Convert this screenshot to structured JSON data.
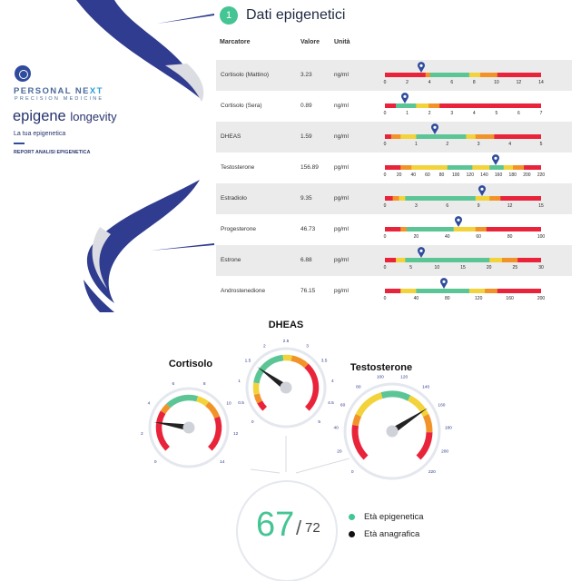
{
  "brand": {
    "name_main": "PERSONAL NE",
    "name_accent": "XT",
    "subtitle": "PRECISION MEDICINE",
    "product": "epigene",
    "product_suffix": "longevity",
    "tagline": "La tua epigenetica",
    "report_label": "REPORT ANALISI EPIGENETICA"
  },
  "section": {
    "number": "1",
    "title": "Dati epigenetici"
  },
  "table": {
    "headers": {
      "marker": "Marcatore",
      "value": "Valore",
      "unit": "Unità"
    },
    "rows": [
      {
        "name": "Cortisolo (Mattino)",
        "value": "3.23",
        "unit": "ng/ml",
        "ticks": [
          "0",
          "2",
          "4",
          "6",
          "8",
          "10",
          "12",
          "14"
        ],
        "marker_fraction": 0.23,
        "segments": [
          {
            "color": "#e8233a",
            "from": 0,
            "to": 0.26
          },
          {
            "color": "#f2932a",
            "from": 0.26,
            "to": 0.29
          },
          {
            "color": "#5cc596",
            "from": 0.29,
            "to": 0.54
          },
          {
            "color": "#f3d33b",
            "from": 0.54,
            "to": 0.61
          },
          {
            "color": "#f2932a",
            "from": 0.61,
            "to": 0.72
          },
          {
            "color": "#e8233a",
            "from": 0.72,
            "to": 1
          }
        ]
      },
      {
        "name": "Cortisolo (Sera)",
        "value": "0.89",
        "unit": "ng/ml",
        "ticks": [
          "0",
          "1",
          "2",
          "3",
          "4",
          "5",
          "6",
          "7"
        ],
        "marker_fraction": 0.13,
        "segments": [
          {
            "color": "#e8233a",
            "from": 0,
            "to": 0.07
          },
          {
            "color": "#5cc596",
            "from": 0.07,
            "to": 0.2
          },
          {
            "color": "#f3d33b",
            "from": 0.2,
            "to": 0.28
          },
          {
            "color": "#f2932a",
            "from": 0.28,
            "to": 0.35
          },
          {
            "color": "#e8233a",
            "from": 0.35,
            "to": 1
          }
        ]
      },
      {
        "name": "DHEAS",
        "value": "1.59",
        "unit": "ng/ml",
        "ticks": [
          "0",
          "1",
          "2",
          "3",
          "4",
          "5"
        ],
        "marker_fraction": 0.32,
        "segments": [
          {
            "color": "#e8233a",
            "from": 0,
            "to": 0.04
          },
          {
            "color": "#f2932a",
            "from": 0.04,
            "to": 0.1
          },
          {
            "color": "#f3d33b",
            "from": 0.1,
            "to": 0.2
          },
          {
            "color": "#5cc596",
            "from": 0.2,
            "to": 0.52
          },
          {
            "color": "#f3d33b",
            "from": 0.52,
            "to": 0.58
          },
          {
            "color": "#f2932a",
            "from": 0.58,
            "to": 0.7
          },
          {
            "color": "#e8233a",
            "from": 0.7,
            "to": 1
          }
        ]
      },
      {
        "name": "Testosterone",
        "value": "156.89",
        "unit": "pg/ml",
        "ticks": [
          "0",
          "20",
          "40",
          "60",
          "80",
          "100",
          "120",
          "140",
          "160",
          "180",
          "200",
          "220"
        ],
        "marker_fraction": 0.71,
        "segments": [
          {
            "color": "#e8233a",
            "from": 0,
            "to": 0.1
          },
          {
            "color": "#f2932a",
            "from": 0.1,
            "to": 0.17
          },
          {
            "color": "#f3d33b",
            "from": 0.17,
            "to": 0.4
          },
          {
            "color": "#5cc596",
            "from": 0.4,
            "to": 0.56
          },
          {
            "color": "#f3d33b",
            "from": 0.56,
            "to": 0.67
          },
          {
            "color": "#5cc596",
            "from": 0.67,
            "to": 0.76
          },
          {
            "color": "#f3d33b",
            "from": 0.76,
            "to": 0.82
          },
          {
            "color": "#f2932a",
            "from": 0.82,
            "to": 0.89
          },
          {
            "color": "#e8233a",
            "from": 0.89,
            "to": 1
          }
        ]
      },
      {
        "name": "Estradiolo",
        "value": "9.35",
        "unit": "pg/ml",
        "ticks": [
          "0",
          "3",
          "6",
          "9",
          "12",
          "15"
        ],
        "marker_fraction": 0.62,
        "segments": [
          {
            "color": "#e8233a",
            "from": 0,
            "to": 0.05
          },
          {
            "color": "#f2932a",
            "from": 0.05,
            "to": 0.09
          },
          {
            "color": "#f3d33b",
            "from": 0.09,
            "to": 0.13
          },
          {
            "color": "#5cc596",
            "from": 0.13,
            "to": 0.58
          },
          {
            "color": "#f3d33b",
            "from": 0.58,
            "to": 0.67
          },
          {
            "color": "#f2932a",
            "from": 0.67,
            "to": 0.74
          },
          {
            "color": "#e8233a",
            "from": 0.74,
            "to": 1
          }
        ]
      },
      {
        "name": "Progesterone",
        "value": "46.73",
        "unit": "pg/ml",
        "ticks": [
          "0",
          "20",
          "40",
          "60",
          "80",
          "100"
        ],
        "marker_fraction": 0.47,
        "segments": [
          {
            "color": "#e8233a",
            "from": 0,
            "to": 0.1
          },
          {
            "color": "#f2932a",
            "from": 0.1,
            "to": 0.14
          },
          {
            "color": "#5cc596",
            "from": 0.14,
            "to": 0.44
          },
          {
            "color": "#f3d33b",
            "from": 0.44,
            "to": 0.58
          },
          {
            "color": "#f2932a",
            "from": 0.58,
            "to": 0.65
          },
          {
            "color": "#e8233a",
            "from": 0.65,
            "to": 1
          }
        ]
      },
      {
        "name": "Estrone",
        "value": "6.88",
        "unit": "pg/ml",
        "ticks": [
          "0",
          "5",
          "10",
          "15",
          "20",
          "25",
          "30"
        ],
        "marker_fraction": 0.23,
        "segments": [
          {
            "color": "#e8233a",
            "from": 0,
            "to": 0.07
          },
          {
            "color": "#f3d33b",
            "from": 0.07,
            "to": 0.13
          },
          {
            "color": "#5cc596",
            "from": 0.13,
            "to": 0.67
          },
          {
            "color": "#f3d33b",
            "from": 0.67,
            "to": 0.75
          },
          {
            "color": "#f2932a",
            "from": 0.75,
            "to": 0.85
          },
          {
            "color": "#e8233a",
            "from": 0.85,
            "to": 1
          }
        ]
      },
      {
        "name": "Androstenedione",
        "value": "76.15",
        "unit": "pg/ml",
        "ticks": [
          "0",
          "40",
          "80",
          "120",
          "160",
          "200"
        ],
        "marker_fraction": 0.38,
        "segments": [
          {
            "color": "#e8233a",
            "from": 0,
            "to": 0.1
          },
          {
            "color": "#f3d33b",
            "from": 0.1,
            "to": 0.2
          },
          {
            "color": "#5cc596",
            "from": 0.2,
            "to": 0.54
          },
          {
            "color": "#f3d33b",
            "from": 0.54,
            "to": 0.64
          },
          {
            "color": "#f2932a",
            "from": 0.64,
            "to": 0.72
          },
          {
            "color": "#e8233a",
            "from": 0.72,
            "to": 1
          }
        ]
      }
    ]
  },
  "gauges": [
    {
      "id": "cortisolo",
      "title": "Cortisolo",
      "ticks": [
        "0",
        "2",
        "4",
        "6",
        "8",
        "10",
        "12",
        "14"
      ],
      "needle_fraction": 0.2,
      "zones": [
        {
          "color": "#e8233a",
          "from": 0,
          "to": 0.28
        },
        {
          "color": "#f2932a",
          "from": 0.28,
          "to": 0.34
        },
        {
          "color": "#5cc596",
          "from": 0.34,
          "to": 0.56
        },
        {
          "color": "#f3d33b",
          "from": 0.56,
          "to": 0.64
        },
        {
          "color": "#f2932a",
          "from": 0.64,
          "to": 0.76
        },
        {
          "color": "#e8233a",
          "from": 0.76,
          "to": 1
        }
      ]
    },
    {
      "id": "dheas",
      "title": "DHEAS",
      "ticks": [
        "0",
        "0.5",
        "1",
        "1.5",
        "2",
        "2.5",
        "3",
        "3.5",
        "4",
        "4.5",
        "5"
      ],
      "needle_fraction": 0.3,
      "zones": [
        {
          "color": "#e8233a",
          "from": 0,
          "to": 0.06
        },
        {
          "color": "#f2932a",
          "from": 0.06,
          "to": 0.12
        },
        {
          "color": "#f3d33b",
          "from": 0.12,
          "to": 0.2
        },
        {
          "color": "#5cc596",
          "from": 0.2,
          "to": 0.48
        },
        {
          "color": "#f3d33b",
          "from": 0.48,
          "to": 0.54
        },
        {
          "color": "#f2932a",
          "from": 0.54,
          "to": 0.66
        },
        {
          "color": "#e8233a",
          "from": 0.66,
          "to": 1
        }
      ]
    },
    {
      "id": "testosterone",
      "title": "Testosterone",
      "ticks": [
        "0",
        "20",
        "40",
        "60",
        "80",
        "100",
        "120",
        "140",
        "160",
        "180",
        "200",
        "220"
      ],
      "needle_fraction": 0.71,
      "zones": [
        {
          "color": "#e8233a",
          "from": 0,
          "to": 0.2
        },
        {
          "color": "#f2932a",
          "from": 0.2,
          "to": 0.26
        },
        {
          "color": "#f3d33b",
          "from": 0.26,
          "to": 0.44
        },
        {
          "color": "#5cc596",
          "from": 0.44,
          "to": 0.6
        },
        {
          "color": "#f3d33b",
          "from": 0.6,
          "to": 0.74
        },
        {
          "color": "#f2932a",
          "from": 0.74,
          "to": 0.84
        },
        {
          "color": "#e8233a",
          "from": 0.84,
          "to": 1
        }
      ]
    }
  ],
  "result": {
    "epigenetic_age": "67",
    "separator": "/",
    "chronological_age": "72"
  },
  "legend": [
    {
      "label": "Età epigenetica",
      "color": "#45c494"
    },
    {
      "label": "Età anagrafica",
      "color": "#111111"
    }
  ],
  "colors": {
    "navy": "#2f3c8f",
    "accent": "#45c494",
    "marker_pin": "#2f4c9c"
  }
}
